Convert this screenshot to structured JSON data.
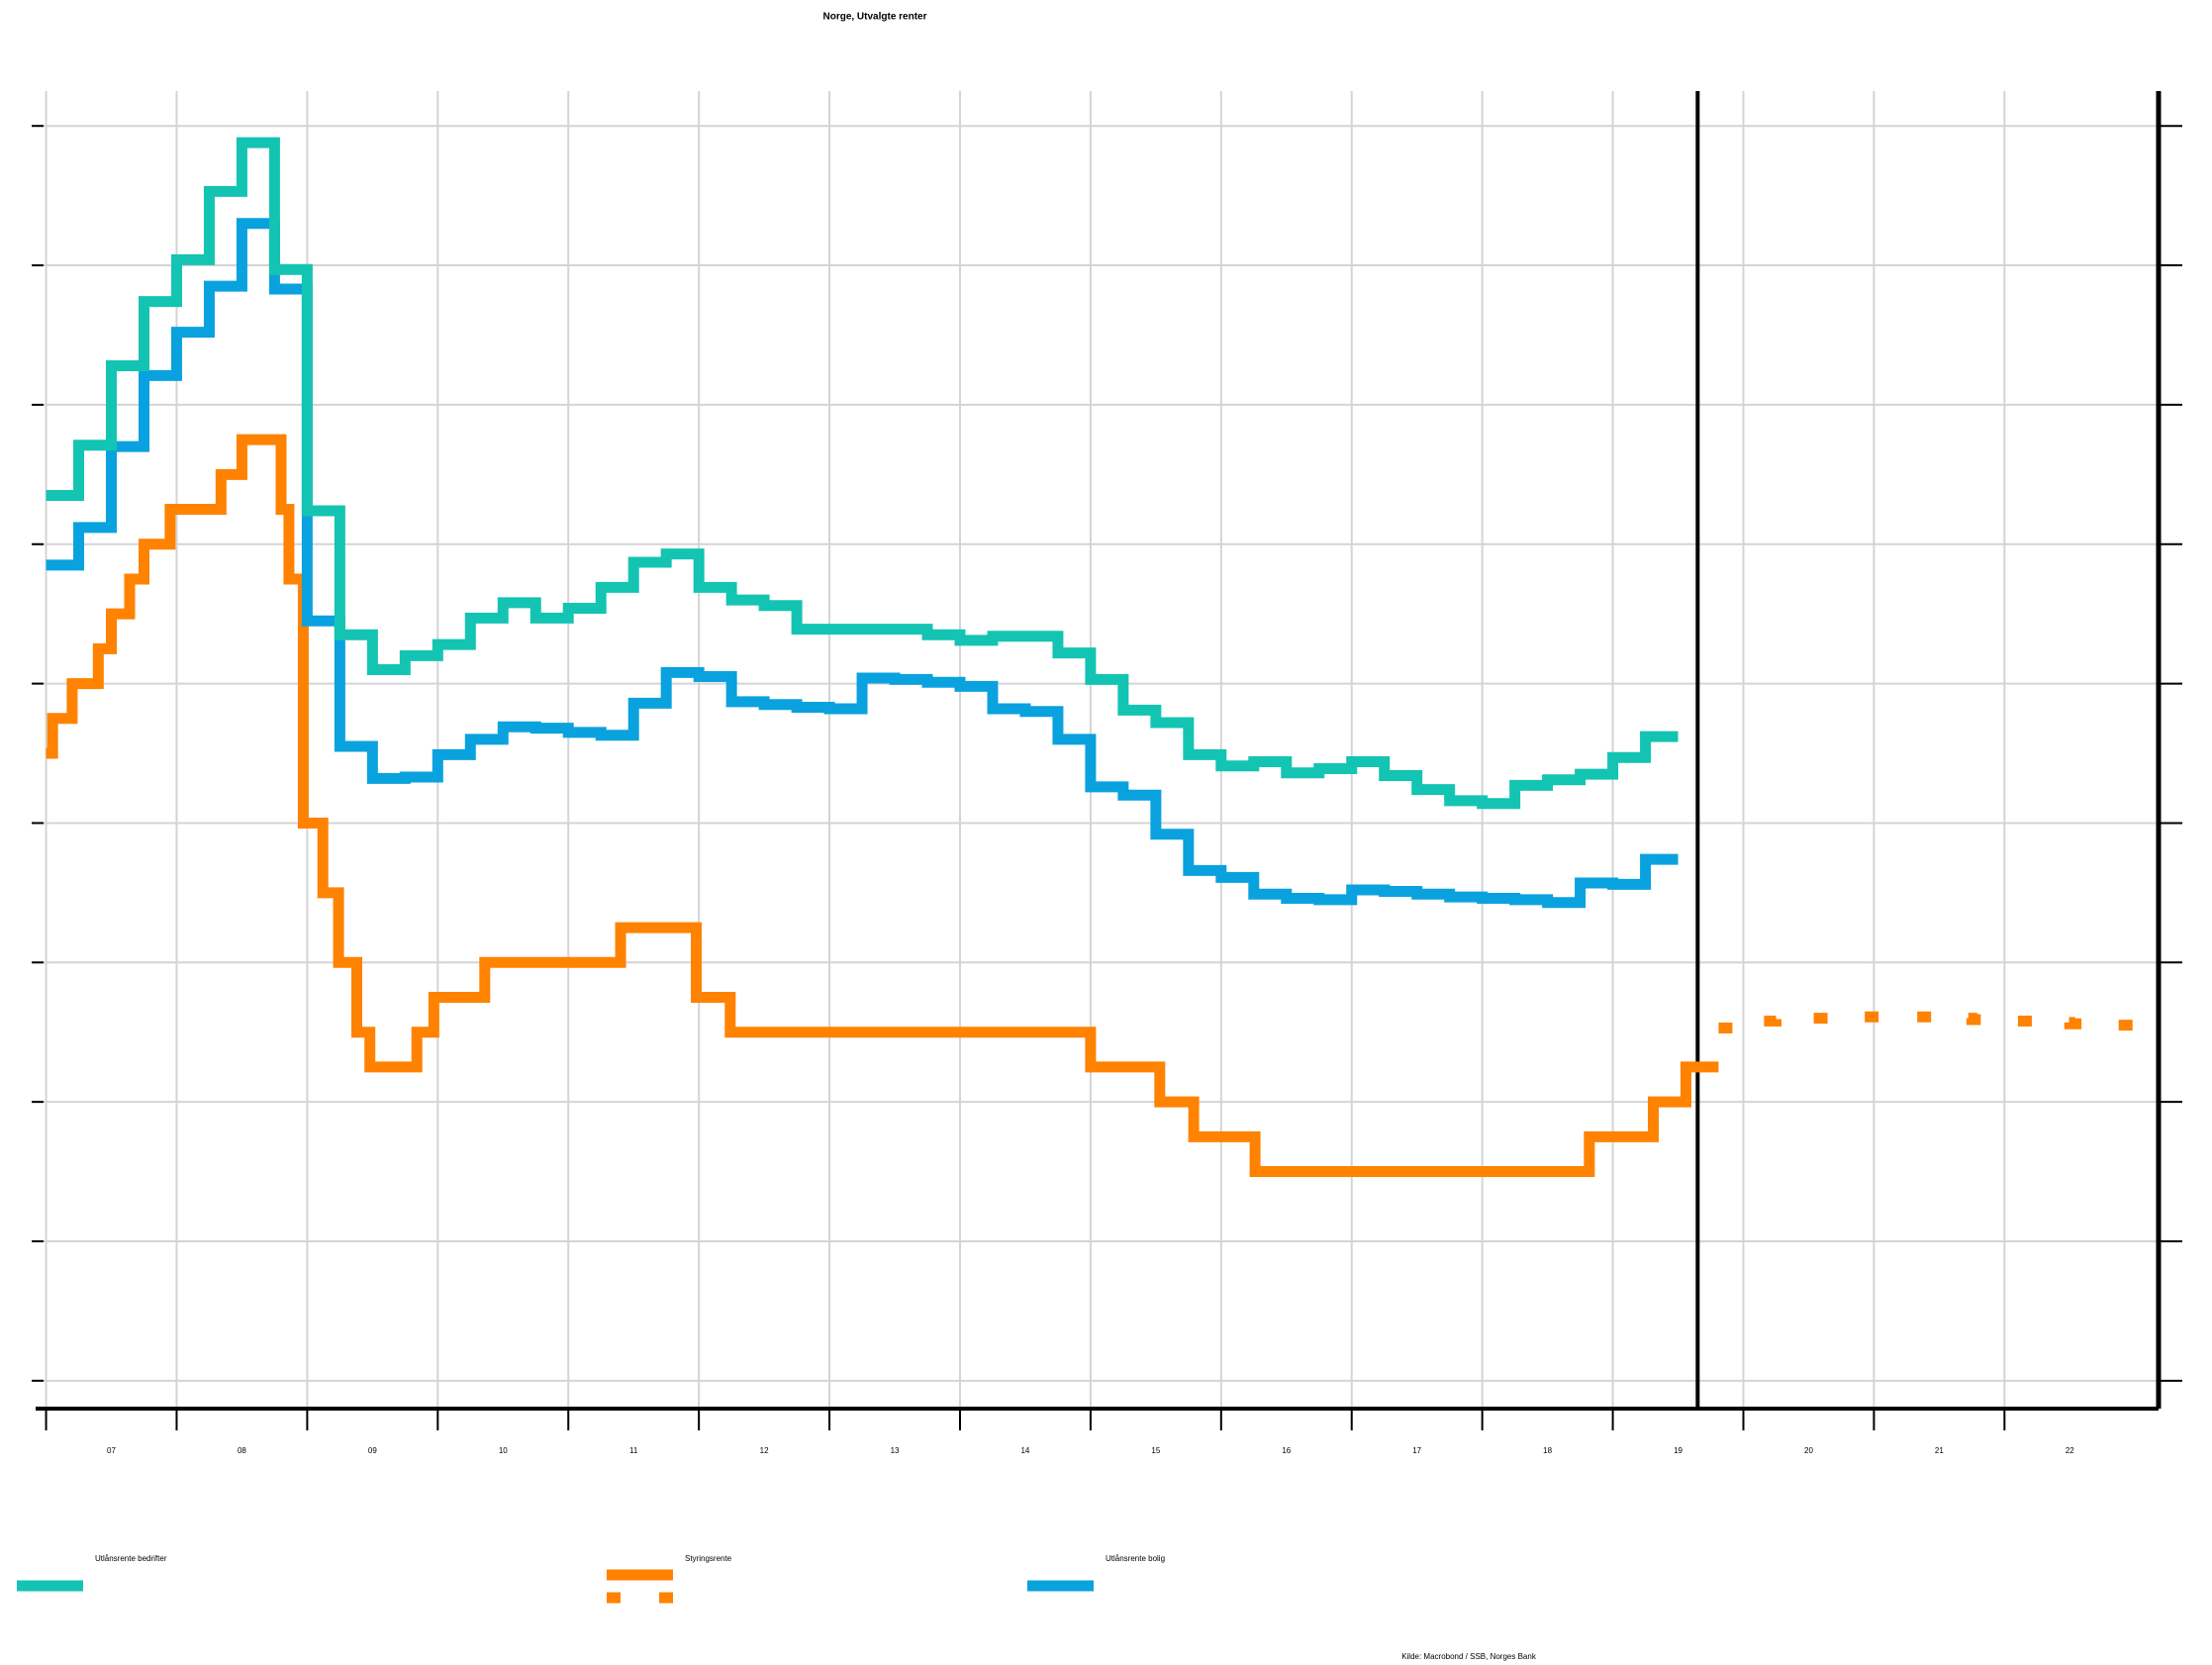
{
  "chart_data": {
    "type": "step-line",
    "title": "Norge, Utvalgte renter",
    "source": "Kilde: Macrobond / SSB, Norges Bank",
    "xlim": [
      2006.92,
      2023.18
    ],
    "ylim": [
      -1.2,
      8.25
    ],
    "yticks": [
      -1,
      0,
      1,
      2,
      3,
      4,
      5,
      6,
      7,
      8
    ],
    "xticks": [
      {
        "value": 2007,
        "label": "07"
      },
      {
        "value": 2008,
        "label": "08"
      },
      {
        "value": 2009,
        "label": "09"
      },
      {
        "value": 2010,
        "label": "10"
      },
      {
        "value": 2011,
        "label": "11"
      },
      {
        "value": 2012,
        "label": "12"
      },
      {
        "value": 2013,
        "label": "13"
      },
      {
        "value": 2014,
        "label": "14"
      },
      {
        "value": 2015,
        "label": "15"
      },
      {
        "value": 2016,
        "label": "16"
      },
      {
        "value": 2017,
        "label": "17"
      },
      {
        "value": 2018,
        "label": "18"
      },
      {
        "value": 2019,
        "label": "19"
      },
      {
        "value": 2020,
        "label": "20"
      },
      {
        "value": 2021,
        "label": "21"
      },
      {
        "value": 2022,
        "label": "22"
      }
    ],
    "grid": true,
    "divider_x": 2019.65,
    "series": [
      {
        "name": "Utlånsrente bedrifter",
        "color": "#14c4b2",
        "x": [
          2007,
          2007.25,
          2007.5,
          2007.75,
          2008,
          2008.25,
          2008.5,
          2008.75,
          2009,
          2009.25,
          2009.5,
          2009.75,
          2010,
          2010.25,
          2010.5,
          2010.75,
          2011,
          2011.25,
          2011.5,
          2011.75,
          2012,
          2012.25,
          2012.5,
          2012.75,
          2013,
          2013.25,
          2013.5,
          2013.75,
          2014,
          2014.25,
          2014.5,
          2014.75,
          2015,
          2015.25,
          2015.5,
          2015.75,
          2016,
          2016.25,
          2016.5,
          2016.75,
          2017,
          2017.25,
          2017.5,
          2017.75,
          2018,
          2018.25,
          2018.5,
          2018.75,
          2019,
          2019.25
        ],
        "values": [
          5.35,
          5.71,
          6.28,
          6.74,
          7.04,
          7.53,
          7.88,
          6.97,
          5.24,
          4.35,
          4.1,
          4.2,
          4.28,
          4.47,
          4.58,
          4.47,
          4.54,
          4.69,
          4.87,
          4.93,
          4.69,
          4.6,
          4.56,
          4.39,
          4.39,
          4.39,
          4.39,
          4.35,
          4.31,
          4.34,
          4.34,
          4.22,
          4.03,
          3.81,
          3.72,
          3.49,
          3.41,
          3.44,
          3.36,
          3.39,
          3.44,
          3.34,
          3.24,
          3.16,
          3.14,
          3.27,
          3.31,
          3.35,
          3.47,
          3.62
        ]
      },
      {
        "name": "Styringsrente",
        "color": "#ff8200",
        "x": [
          2007,
          2007.05,
          2007.2,
          2007.4,
          2007.5,
          2007.64,
          2007.75,
          2007.95,
          2008.34,
          2008.5,
          2008.8,
          2008.86,
          2008.97,
          2009.12,
          2009.24,
          2009.38,
          2009.48,
          2009.84,
          2009.97,
          2010.36,
          2011.4,
          2011.98,
          2012.24,
          2015,
          2015.53,
          2015.79,
          2016.26,
          2018.82,
          2019.31,
          2019.56
        ],
        "values": [
          3.5,
          3.75,
          4,
          4.25,
          4.5,
          4.75,
          5,
          5.25,
          5.5,
          5.75,
          5.25,
          4.75,
          3,
          2.5,
          2,
          1.5,
          1.25,
          1.5,
          1.75,
          2,
          2.25,
          1.75,
          1.5,
          1.25,
          1,
          0.75,
          0.5,
          0.75,
          1,
          1.25
        ],
        "forecast": {
          "x": [
            2019.81,
            2020,
            2020.25,
            2020.5,
            2020.75,
            2021,
            2021.25,
            2021.5,
            2021.75,
            2022,
            2022.25,
            2022.5,
            2022.75
          ],
          "values": [
            1.53,
            1.58,
            1.6,
            1.6,
            1.61,
            1.61,
            1.61,
            1.6,
            1.59,
            1.58,
            1.57,
            1.56,
            1.55
          ]
        }
      },
      {
        "name": "Utlånsrente bolig",
        "color": "#0aa2de",
        "x": [
          2007,
          2007.25,
          2007.5,
          2007.75,
          2008,
          2008.25,
          2008.5,
          2008.75,
          2009,
          2009.25,
          2009.5,
          2009.75,
          2010,
          2010.25,
          2010.5,
          2010.75,
          2011,
          2011.25,
          2011.5,
          2011.75,
          2012,
          2012.25,
          2012.5,
          2012.75,
          2013,
          2013.25,
          2013.5,
          2013.75,
          2014,
          2014.25,
          2014.5,
          2014.75,
          2015,
          2015.25,
          2015.5,
          2015.75,
          2016,
          2016.25,
          2016.5,
          2016.75,
          2017,
          2017.25,
          2017.5,
          2017.75,
          2018,
          2018.25,
          2018.5,
          2018.75,
          2019,
          2019.25
        ],
        "values": [
          4.85,
          5.12,
          5.7,
          6.21,
          6.52,
          6.85,
          7.3,
          6.83,
          4.45,
          3.55,
          3.32,
          3.33,
          3.49,
          3.6,
          3.69,
          3.68,
          3.65,
          3.63,
          3.86,
          4.08,
          4.05,
          3.87,
          3.85,
          3.83,
          3.82,
          4.04,
          4.03,
          4.01,
          3.98,
          3.82,
          3.8,
          3.6,
          3.26,
          3.2,
          2.92,
          2.66,
          2.61,
          2.49,
          2.46,
          2.45,
          2.52,
          2.51,
          2.49,
          2.47,
          2.46,
          2.45,
          2.43,
          2.57,
          2.56,
          2.74
        ]
      }
    ]
  }
}
